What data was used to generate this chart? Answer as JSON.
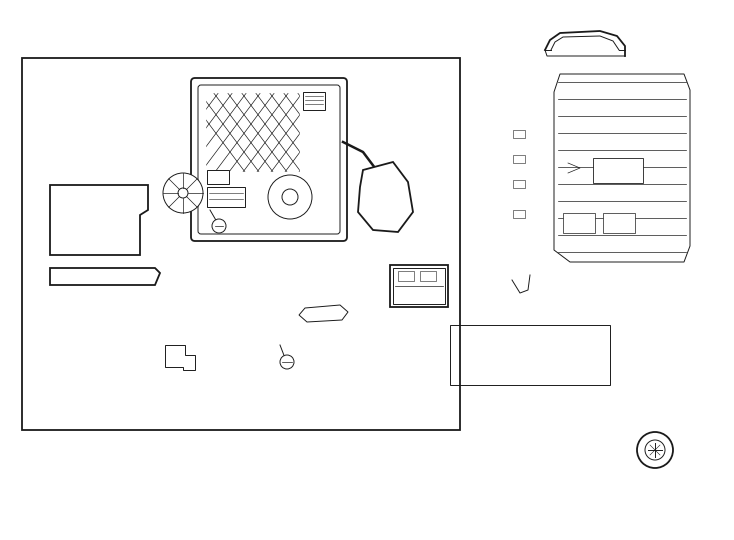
{
  "bg_color": "#ffffff",
  "line_color": "#1a1a1a",
  "lw_main": 1.3,
  "lw_thin": 0.7,
  "lw_thick": 1.8,
  "font_size": 12
}
